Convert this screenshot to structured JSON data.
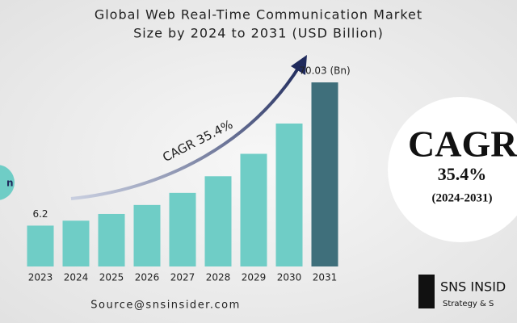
{
  "chart_data": {
    "type": "bar",
    "title": "Global Web Real-Time Communication Market",
    "subtitle": "Size by 2024 to 2031 (USD Billion)",
    "categories": [
      "2023",
      "2024",
      "2025",
      "2026",
      "2027",
      "2028",
      "2029",
      "2030",
      "2031"
    ],
    "values": [
      6.2,
      8.4,
      11.4,
      15.4,
      20.8,
      28.2,
      38.2,
      51.7,
      70.03
    ],
    "value_labels": [
      "6.2",
      null,
      null,
      null,
      null,
      null,
      null,
      null,
      "70.03 (Bn)"
    ],
    "colors": [
      "#6fcdc6",
      "#6fcdc6",
      "#6fcdc6",
      "#6fcdc6",
      "#6fcdc6",
      "#6fcdc6",
      "#6fcdc6",
      "#6fcdc6",
      "#3f6f7b"
    ],
    "ylim": [
      -12,
      74
    ],
    "arrow_label": "CAGR 35.4%",
    "badge": {
      "title": "CAGR",
      "rate": "35.4%",
      "period": "(2024-2031)"
    },
    "left_badge": "n",
    "source": "Source@snsinsider.com",
    "logo": {
      "name": "SNS INSID",
      "tagline": "Strategy & S"
    }
  }
}
